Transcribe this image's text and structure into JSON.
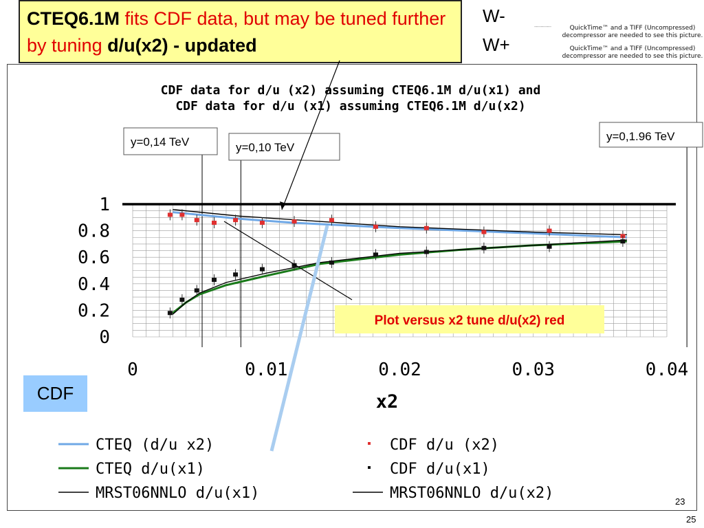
{
  "slide": {
    "title_part1": "CTEQ6.1M",
    "title_part2": " fits CDF data, but may be tuned further by tuning ",
    "title_part3": "d/u(x2) - updated",
    "w_minus": "W-",
    "w_plus": "W+",
    "quicktime_1": "QuickTime™ and a TIFF (Uncompressed) decompressor are needed to see this picture.",
    "quicktime_2": "QuickTime™ and a TIFF (Uncompressed) decompressor are needed to see this picture.",
    "tiny_text": "\"\"\"\"\"\"\"\"\"\"\"\"\"\"",
    "cdf_label": "CDF",
    "page_a": "23",
    "page_b": "25",
    "colors": {
      "title_bg": "#ffff99",
      "title_red": "#e00000",
      "cdf_box": "#99ccff",
      "callout_bg": "#ffff99"
    }
  },
  "chart_data": {
    "type": "line",
    "title": "CDF data for d/u (x2) assuming CTEQ6.1M  d/u(x1)  and\nCDF data for d/u (x1) assuming CTEQ6.1M d/u(x2)",
    "xlabel": "x2",
    "ylabel": "",
    "xlim": [
      0,
      0.04
    ],
    "ylim": [
      0,
      1
    ],
    "x_ticks": [
      "0",
      "0.01",
      "0.02",
      "0.03",
      "0.04"
    ],
    "y_ticks": [
      "0",
      "0.2",
      "0.4",
      "0.6",
      "0.8",
      "1"
    ],
    "grid": true,
    "legend_position": "bottom",
    "series": [
      {
        "name": "CTEQ (d/u x2)",
        "kind": "line",
        "color": "#6fa8e6",
        "x": [
          0.003,
          0.005,
          0.008,
          0.012,
          0.016,
          0.02,
          0.025,
          0.03,
          0.037
        ],
        "y": [
          0.94,
          0.92,
          0.89,
          0.86,
          0.84,
          0.82,
          0.8,
          0.78,
          0.75
        ]
      },
      {
        "name": "CTEQ d/u(x1)",
        "kind": "line",
        "color": "#1a7a1a",
        "x": [
          0.003,
          0.004,
          0.005,
          0.007,
          0.01,
          0.014,
          0.02,
          0.025,
          0.03,
          0.037
        ],
        "y": [
          0.18,
          0.26,
          0.32,
          0.39,
          0.46,
          0.55,
          0.62,
          0.66,
          0.69,
          0.72
        ]
      },
      {
        "name": "MRST06NNLO d/u(x1)",
        "kind": "line",
        "color": "#000000",
        "x": [
          0.003,
          0.004,
          0.005,
          0.007,
          0.01,
          0.014,
          0.02,
          0.025,
          0.03,
          0.037
        ],
        "y": [
          0.17,
          0.26,
          0.33,
          0.41,
          0.48,
          0.56,
          0.63,
          0.66,
          0.69,
          0.73
        ]
      },
      {
        "name": "MRST06NNLO d/u(x2)",
        "kind": "line",
        "color": "#000000",
        "x": [
          0.003,
          0.008,
          0.014,
          0.02,
          0.025,
          0.03,
          0.037
        ],
        "y": [
          0.96,
          0.91,
          0.87,
          0.83,
          0.81,
          0.79,
          0.77
        ]
      },
      {
        "name": "CDF d/u (x2)",
        "kind": "points",
        "color": "#e03030",
        "x": [
          0.0028,
          0.0037,
          0.0048,
          0.0061,
          0.0077,
          0.0097,
          0.0121,
          0.0149,
          0.0182,
          0.022,
          0.0263,
          0.0312,
          0.0367
        ],
        "y": [
          0.92,
          0.92,
          0.88,
          0.86,
          0.88,
          0.86,
          0.87,
          0.88,
          0.83,
          0.82,
          0.79,
          0.8,
          0.76
        ]
      },
      {
        "name": "CDF d/u(x1)",
        "kind": "points",
        "color": "#111111",
        "x": [
          0.0028,
          0.0037,
          0.0048,
          0.0061,
          0.0077,
          0.0097,
          0.0121,
          0.0149,
          0.0182,
          0.022,
          0.0263,
          0.0312,
          0.0367
        ],
        "y": [
          0.18,
          0.28,
          0.35,
          0.43,
          0.47,
          0.51,
          0.54,
          0.56,
          0.62,
          0.64,
          0.67,
          0.68,
          0.72
        ]
      }
    ],
    "annotations": [
      {
        "text": "y=0,14 TeV",
        "line_x": 0.0052
      },
      {
        "text": "y=0,10 TeV",
        "line_x": 0.0081
      },
      {
        "text": "y=0,1.96 TeV",
        "line_x": 0.0415
      },
      {
        "text": "Plot versus x2 tune d/u(x2) red"
      }
    ],
    "reference_line_y": 1.0
  }
}
